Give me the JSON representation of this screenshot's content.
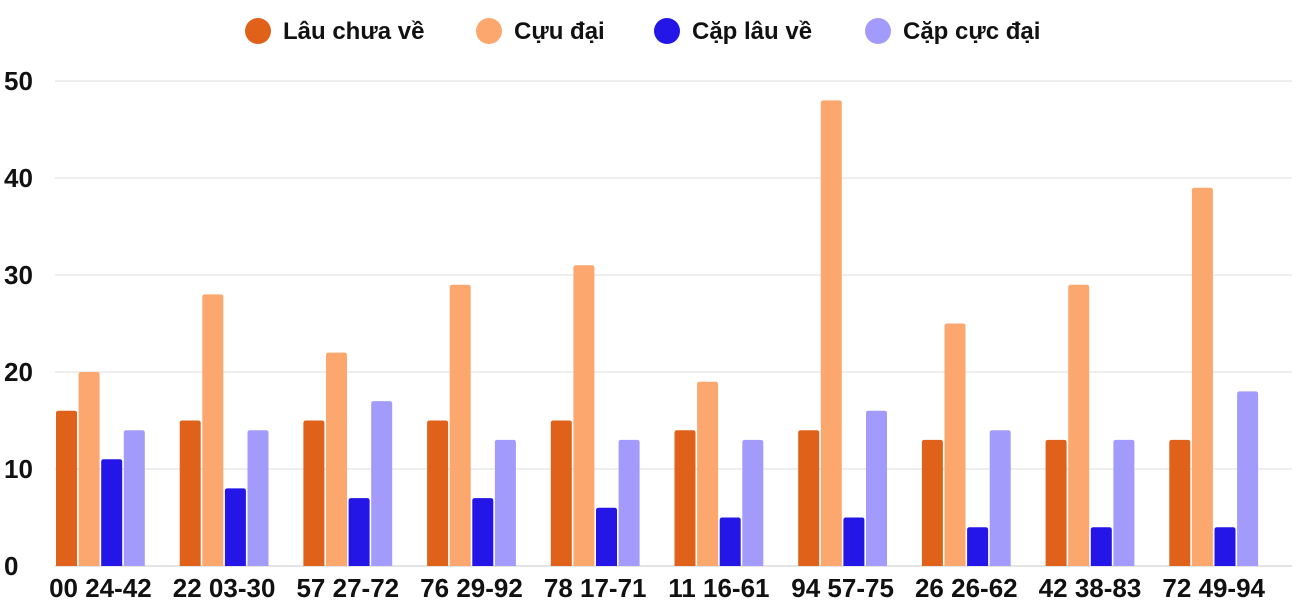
{
  "chart_data": {
    "type": "bar",
    "categories": [
      "00 24-42",
      "22 03-30",
      "57 27-72",
      "76 29-92",
      "78 17-71",
      "11 16-61",
      "94 57-75",
      "26 26-62",
      "42 38-83",
      "72 49-94"
    ],
    "series": [
      {
        "name": "Lâu chưa về",
        "color": "#e0621a",
        "values": [
          16,
          15,
          15,
          15,
          15,
          14,
          14,
          13,
          13,
          13
        ]
      },
      {
        "name": "Cựu đại",
        "color": "#fca76e",
        "values": [
          20,
          28,
          22,
          29,
          31,
          19,
          48,
          25,
          29,
          39
        ]
      },
      {
        "name": "Cặp lâu về",
        "color": "#2316e6",
        "values": [
          11,
          8,
          7,
          7,
          6,
          5,
          5,
          4,
          4,
          4
        ]
      },
      {
        "name": "Cặp cực đại",
        "color": "#a29bfb",
        "values": [
          14,
          14,
          17,
          13,
          13,
          13,
          16,
          14,
          13,
          18
        ]
      }
    ],
    "yticks": [
      0,
      10,
      20,
      30,
      40,
      50
    ],
    "ylim": [
      0,
      50
    ],
    "grid": true,
    "legend_position": "top"
  }
}
